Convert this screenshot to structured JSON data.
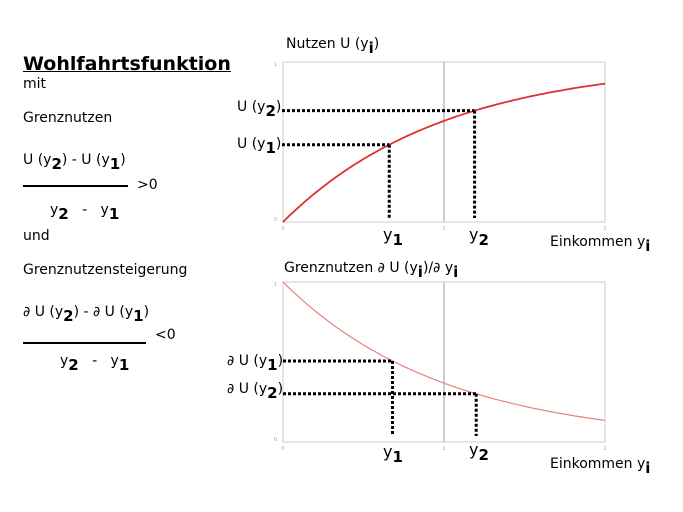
{
  "left": {
    "title": "Wohlfahrtsfunktion",
    "mit": "mit",
    "grenznutzen": "Grenznutzen",
    "frac1": {
      "num_a": "U (y",
      "num_a_sub": "2",
      "num_b": ") - U (y",
      "num_b_sub": "1",
      "num_c": ")",
      "den_a": "y",
      "den_a_sub": "2",
      "den_mid": "-",
      "den_b": "y",
      "den_b_sub": "1",
      "rel": ">0"
    },
    "und": "und",
    "steigerung": "Grenznutzensteigerung",
    "frac2": {
      "num_a": "∂ U (y",
      "num_a_sub": "2",
      "num_b": ") - ∂ U (y",
      "num_b_sub": "1",
      "num_c": ")",
      "den_a": "y",
      "den_a_sub": "2",
      "den_mid": "-",
      "den_b": "y",
      "den_b_sub": "1",
      "rel": "<0"
    }
  },
  "chart_data": [
    {
      "type": "line",
      "title": "Nutzen U (y",
      "title_sub": "i",
      "title_end": ")",
      "xlabel": "Einkommen y",
      "xlabel_sub": "i",
      "function": "1 - exp(-x)",
      "xlim": [
        0,
        2
      ],
      "ylim": [
        0,
        1
      ],
      "xticks": [
        "0",
        "1",
        "2"
      ],
      "yticks": [
        "0",
        "1"
      ],
      "markers": {
        "y1": 0.66,
        "y2": 1.19
      },
      "marker_labels": {
        "x1": "y",
        "x1_sub": "1",
        "x2": "y",
        "x2_sub": "2",
        "v1": "U (y",
        "v1_sub": "1",
        "v2": "U (y",
        "v2_sub": "2",
        "close": ")"
      },
      "color": "#e03030"
    },
    {
      "type": "line",
      "title": "Grenznutzen ∂ U (y",
      "title_sub": "i",
      "title_end": ")/∂ y",
      "title_sub2": "i",
      "xlabel": "Einkommen y",
      "xlabel_sub": "i",
      "function": "exp(-x)",
      "xlim": [
        0,
        2
      ],
      "ylim": [
        0,
        1
      ],
      "xticks": [
        "0",
        "1",
        "2"
      ],
      "yticks": [
        "0",
        "1"
      ],
      "markers": {
        "y1": 0.68,
        "y2": 1.2
      },
      "marker_labels": {
        "x1": "y",
        "x1_sub": "1",
        "x2": "y",
        "x2_sub": "2",
        "v1": "∂ U (y",
        "v1_sub": "1",
        "v2": "∂ U (y",
        "v2_sub": "2",
        "close": ")"
      },
      "color": "#e88080"
    }
  ]
}
